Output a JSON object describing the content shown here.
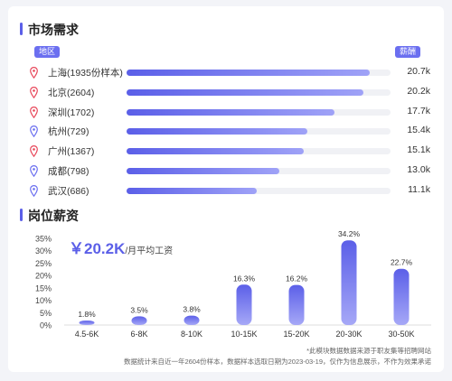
{
  "market": {
    "title": "市场需求",
    "region_label": "地区",
    "salary_label": "薪酬",
    "max_salary": 20.7,
    "rows": [
      {
        "city": "上海(1935份样本)",
        "salary": "20.7k",
        "value": 20.7,
        "pin_color": "#e8475a"
      },
      {
        "city": "北京(2604)",
        "salary": "20.2k",
        "value": 20.2,
        "pin_color": "#e8475a"
      },
      {
        "city": "深圳(1702)",
        "salary": "17.7k",
        "value": 17.7,
        "pin_color": "#e8475a"
      },
      {
        "city": "杭州(729)",
        "salary": "15.4k",
        "value": 15.4,
        "pin_color": "#6b6ff0"
      },
      {
        "city": "广州(1367)",
        "salary": "15.1k",
        "value": 15.1,
        "pin_color": "#e8475a"
      },
      {
        "city": "成都(798)",
        "salary": "13.0k",
        "value": 13.0,
        "pin_color": "#6b6ff0"
      },
      {
        "city": "武汉(686)",
        "salary": "11.1k",
        "value": 11.1,
        "pin_color": "#6b6ff0"
      }
    ]
  },
  "salary": {
    "title": "岗位薪资",
    "avg_value": "￥20.2K",
    "avg_unit": "/月平均工资",
    "note1": "*此模块数据数据来源于职友集等招聘网站",
    "note2": "数据统计来自近一年2604份样本，数据样本选取日期为2023-03-19，仅作为信息展示，不作为效果承诺"
  },
  "chart_data": {
    "type": "bar",
    "categories": [
      "4.5-6K",
      "6-8K",
      "8-10K",
      "10-15K",
      "15-20K",
      "20-30K",
      "30-50K"
    ],
    "values": [
      1.8,
      3.5,
      3.8,
      16.3,
      16.2,
      34.2,
      22.7
    ],
    "value_labels": [
      "1.8%",
      "3.5%",
      "3.8%",
      "16.3%",
      "16.2%",
      "34.2%",
      "22.7%"
    ],
    "yticks": [
      "0%",
      "5%",
      "10%",
      "15%",
      "20%",
      "25%",
      "30%",
      "35%"
    ],
    "ylim": [
      0,
      35
    ],
    "title": "",
    "xlabel": "",
    "ylabel": "",
    "grid": false,
    "colors": {
      "bar_top": "#5b5fe8",
      "bar_bottom": "#a6a8f7",
      "axis": "#dddddd"
    }
  }
}
